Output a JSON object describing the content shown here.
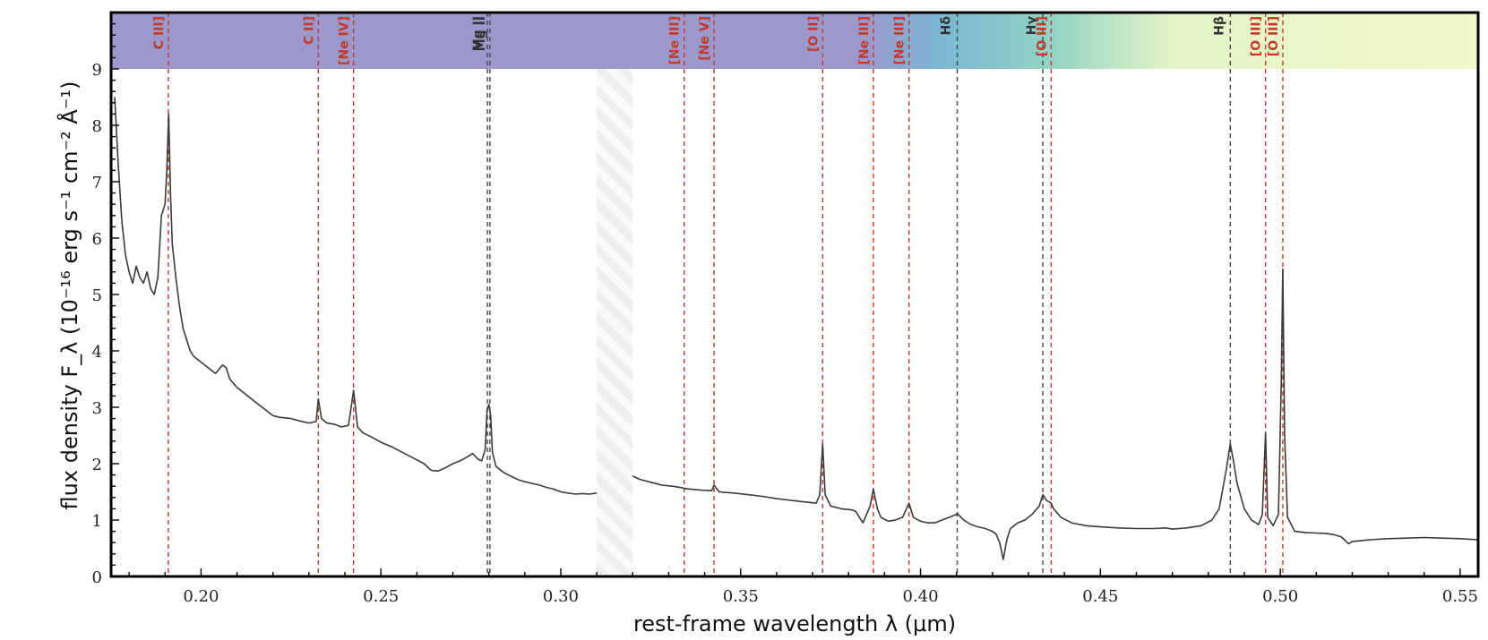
{
  "chart_data": {
    "type": "line",
    "xlabel": "rest-frame wavelength λ (μm)",
    "ylabel": "flux density F_λ (10⁻¹⁶ erg s⁻¹ cm⁻² Å⁻¹)",
    "xlim": [
      0.175,
      0.555
    ],
    "ylim": [
      0,
      10
    ],
    "x_ticks": [
      {
        "value": 0.2,
        "label": "0.20"
      },
      {
        "value": 0.25,
        "label": "0.25"
      },
      {
        "value": 0.3,
        "label": "0.30"
      },
      {
        "value": 0.35,
        "label": "0.35"
      },
      {
        "value": 0.4,
        "label": "0.40"
      },
      {
        "value": 0.45,
        "label": "0.45"
      },
      {
        "value": 0.5,
        "label": "0.50"
      },
      {
        "value": 0.55,
        "label": "0.55"
      }
    ],
    "y_ticks": [
      {
        "value": 0,
        "label": "0"
      },
      {
        "value": 1,
        "label": "1"
      },
      {
        "value": 2,
        "label": "2"
      },
      {
        "value": 3,
        "label": "3"
      },
      {
        "value": 4,
        "label": "4"
      },
      {
        "value": 5,
        "label": "5"
      },
      {
        "value": 6,
        "label": "6"
      },
      {
        "value": 7,
        "label": "7"
      },
      {
        "value": 8,
        "label": "8"
      },
      {
        "value": 9,
        "label": "9"
      }
    ],
    "band_ymin": 9,
    "gap_region": [
      0.31,
      0.32
    ],
    "colors": {
      "spectrum": "#3a3a3a",
      "line_emission": "#c0392b",
      "line_balmer": "#444444",
      "band_start": "#9c98cc",
      "band_mid": "#8dccd0",
      "band_end": "#f1f8c8"
    },
    "band_stops": [
      {
        "x": 0.175,
        "color": "#9c98cc"
      },
      {
        "x": 0.385,
        "color": "#9c98cc"
      },
      {
        "x": 0.405,
        "color": "#7ab7d3"
      },
      {
        "x": 0.435,
        "color": "#90d2c3"
      },
      {
        "x": 0.47,
        "color": "#e3f4c6"
      },
      {
        "x": 0.555,
        "color": "#f2f8c8"
      }
    ],
    "lines": [
      {
        "name": "C III]",
        "x": 0.1909,
        "kind": "emission"
      },
      {
        "name": "C II]",
        "x": 0.2326,
        "kind": "emission"
      },
      {
        "name": "[Ne IV]",
        "x": 0.2424,
        "kind": "emission"
      },
      {
        "name": "Mg II",
        "x": 0.2796,
        "kind": "balmer"
      },
      {
        "name": "Mg II",
        "x": 0.2803,
        "kind": "balmer"
      },
      {
        "name": "[Ne III]",
        "x": 0.3343,
        "kind": "emission"
      },
      {
        "name": "[Ne V]",
        "x": 0.3426,
        "kind": "emission"
      },
      {
        "name": "[O II]",
        "x": 0.3728,
        "kind": "emission"
      },
      {
        "name": "[Ne III]",
        "x": 0.3869,
        "kind": "emission"
      },
      {
        "name": "[Ne III]",
        "x": 0.3968,
        "kind": "emission"
      },
      {
        "name": "Hδ",
        "x": 0.4102,
        "kind": "balmer"
      },
      {
        "name": "Hγ",
        "x": 0.434,
        "kind": "balmer"
      },
      {
        "name": "[O III]",
        "x": 0.4363,
        "kind": "emission"
      },
      {
        "name": "Hβ",
        "x": 0.4861,
        "kind": "balmer"
      },
      {
        "name": "[O III]",
        "x": 0.4959,
        "kind": "emission"
      },
      {
        "name": "[O III]",
        "x": 0.5007,
        "kind": "emission"
      }
    ],
    "spectrum_segments": [
      {
        "name": "blue",
        "x": [
          0.176,
          0.177,
          0.178,
          0.179,
          0.18,
          0.181,
          0.182,
          0.183,
          0.184,
          0.185,
          0.186,
          0.187,
          0.188,
          0.189,
          0.19,
          0.1905,
          0.191,
          0.1915,
          0.192,
          0.193,
          0.194,
          0.195,
          0.196,
          0.197,
          0.198,
          0.2,
          0.202,
          0.204,
          0.206,
          0.207,
          0.208,
          0.21,
          0.212,
          0.215,
          0.218,
          0.22,
          0.222,
          0.225,
          0.228,
          0.23,
          0.232,
          0.2326,
          0.2335,
          0.235,
          0.237,
          0.239,
          0.241,
          0.2424,
          0.2435,
          0.245,
          0.248,
          0.25,
          0.253,
          0.256,
          0.259,
          0.262,
          0.264,
          0.266,
          0.268,
          0.27,
          0.272,
          0.274,
          0.2755,
          0.277,
          0.278,
          0.279,
          0.2795,
          0.28,
          0.2805,
          0.281,
          0.282,
          0.284,
          0.286,
          0.288,
          0.29,
          0.292,
          0.294,
          0.296,
          0.298,
          0.3,
          0.302,
          0.304,
          0.306,
          0.308,
          0.31
        ],
        "y": [
          8.5,
          7.3,
          6.3,
          5.7,
          5.4,
          5.2,
          5.5,
          5.3,
          5.2,
          5.4,
          5.1,
          5.0,
          5.3,
          6.4,
          6.6,
          7.2,
          8.2,
          6.8,
          5.9,
          5.3,
          4.8,
          4.4,
          4.2,
          4.0,
          3.9,
          3.8,
          3.7,
          3.6,
          3.75,
          3.7,
          3.5,
          3.35,
          3.25,
          3.1,
          2.95,
          2.85,
          2.82,
          2.8,
          2.75,
          2.72,
          2.75,
          3.15,
          2.8,
          2.72,
          2.7,
          2.65,
          2.68,
          3.3,
          2.65,
          2.55,
          2.45,
          2.38,
          2.3,
          2.2,
          2.1,
          2.0,
          1.88,
          1.87,
          1.93,
          2.0,
          2.05,
          2.12,
          2.18,
          2.08,
          2.05,
          2.25,
          2.95,
          3.05,
          2.85,
          2.2,
          1.95,
          1.85,
          1.78,
          1.72,
          1.68,
          1.65,
          1.62,
          1.58,
          1.55,
          1.5,
          1.48,
          1.46,
          1.47,
          1.46,
          1.48
        ]
      },
      {
        "name": "red",
        "x": [
          0.32,
          0.322,
          0.325,
          0.328,
          0.331,
          0.334,
          0.3343,
          0.336,
          0.339,
          0.342,
          0.3426,
          0.344,
          0.348,
          0.352,
          0.356,
          0.36,
          0.364,
          0.368,
          0.371,
          0.372,
          0.3728,
          0.3735,
          0.375,
          0.378,
          0.381,
          0.382,
          0.383,
          0.384,
          0.385,
          0.386,
          0.3869,
          0.388,
          0.389,
          0.391,
          0.393,
          0.395,
          0.3968,
          0.398,
          0.4,
          0.402,
          0.404,
          0.406,
          0.408,
          0.41,
          0.4102,
          0.412,
          0.414,
          0.416,
          0.418,
          0.42,
          0.421,
          0.422,
          0.423,
          0.424,
          0.425,
          0.427,
          0.429,
          0.431,
          0.433,
          0.434,
          0.435,
          0.4363,
          0.437,
          0.439,
          0.442,
          0.446,
          0.45,
          0.455,
          0.46,
          0.465,
          0.468,
          0.47,
          0.474,
          0.478,
          0.481,
          0.483,
          0.484,
          0.485,
          0.4861,
          0.487,
          0.488,
          0.49,
          0.492,
          0.494,
          0.495,
          0.4959,
          0.4965,
          0.498,
          0.4995,
          0.5003,
          0.5007,
          0.5012,
          0.502,
          0.504,
          0.507,
          0.51,
          0.513,
          0.515,
          0.517,
          0.519,
          0.52,
          0.525,
          0.53,
          0.535,
          0.54,
          0.545,
          0.55,
          0.555
        ],
        "y": [
          1.78,
          1.72,
          1.67,
          1.62,
          1.6,
          1.57,
          1.56,
          1.55,
          1.53,
          1.52,
          1.62,
          1.5,
          1.48,
          1.45,
          1.42,
          1.38,
          1.35,
          1.32,
          1.3,
          1.45,
          2.35,
          1.45,
          1.25,
          1.2,
          1.18,
          1.15,
          1.05,
          0.95,
          1.1,
          1.25,
          1.55,
          1.2,
          1.05,
          0.98,
          1.0,
          1.05,
          1.3,
          1.05,
          0.98,
          0.95,
          0.95,
          1.0,
          1.05,
          1.1,
          1.12,
          1.0,
          0.92,
          0.88,
          0.85,
          0.8,
          0.75,
          0.6,
          0.3,
          0.65,
          0.85,
          0.95,
          1.0,
          1.1,
          1.25,
          1.45,
          1.35,
          1.3,
          1.2,
          1.05,
          0.95,
          0.9,
          0.88,
          0.86,
          0.85,
          0.85,
          0.86,
          0.84,
          0.86,
          0.9,
          1.0,
          1.2,
          1.55,
          1.9,
          2.35,
          2.05,
          1.65,
          1.2,
          1.0,
          0.92,
          1.1,
          2.55,
          1.05,
          0.9,
          1.1,
          3.5,
          5.45,
          2.5,
          1.05,
          0.8,
          0.78,
          0.77,
          0.76,
          0.74,
          0.7,
          0.58,
          0.62,
          0.65,
          0.67,
          0.68,
          0.69,
          0.68,
          0.67,
          0.65
        ]
      }
    ]
  }
}
